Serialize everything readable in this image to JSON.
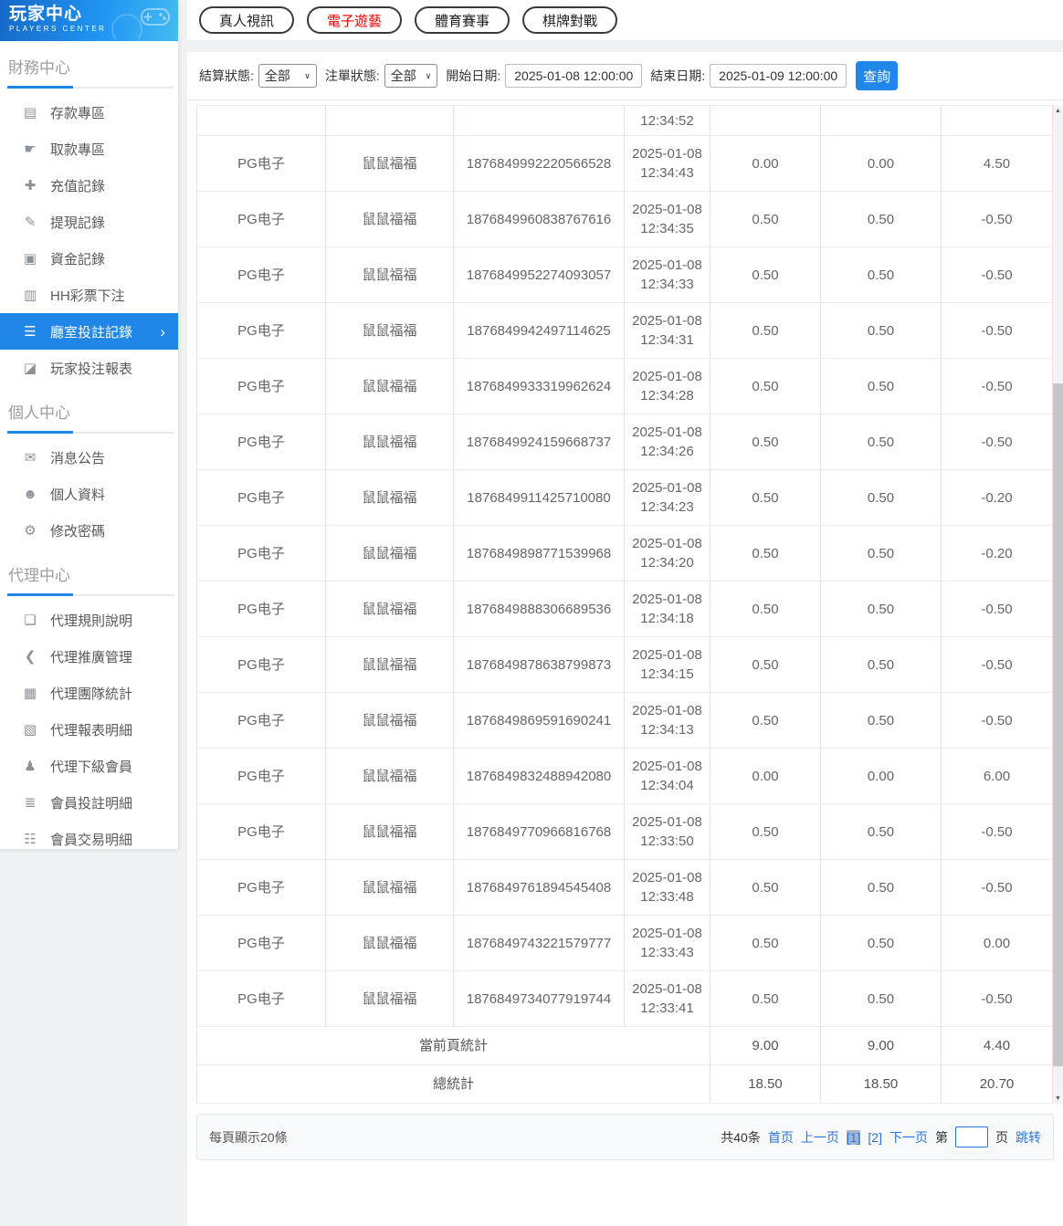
{
  "colors": {
    "accent": "#2086e8",
    "tab_active": "#f50000",
    "link": "#2b74e0",
    "table_col_border": "#f3dcdc"
  },
  "logo": {
    "title": "玩家中心",
    "subtitle": "PLAYERS CENTER"
  },
  "sidebar": {
    "sections": [
      {
        "title": "財務中心",
        "items": [
          {
            "id": "deposit",
            "label": "存款專區",
            "icon_glyph": "▤",
            "icon_name": "bank-card-icon",
            "active": false
          },
          {
            "id": "withdraw",
            "label": "取款專區",
            "icon_glyph": "☛",
            "icon_name": "hand-cash-icon",
            "active": false
          },
          {
            "id": "recharge-record",
            "label": "充值記錄",
            "icon_glyph": "✚",
            "icon_name": "moneybag-icon",
            "active": false
          },
          {
            "id": "withdraw-record",
            "label": "提現記錄",
            "icon_glyph": "✎",
            "icon_name": "cash-icon",
            "active": false
          },
          {
            "id": "funds-record",
            "label": "資金記錄",
            "icon_glyph": "▣",
            "icon_name": "moneybag-coin-icon",
            "active": false
          },
          {
            "id": "hh-lottery-bet",
            "label": "HH彩票下注",
            "icon_glyph": "▥",
            "icon_name": "ticket-icon",
            "active": false
          },
          {
            "id": "room-bet-record",
            "label": "廳室投註記錄",
            "icon_glyph": "☰",
            "icon_name": "list-icon",
            "active": true
          },
          {
            "id": "player-bet-report",
            "label": "玩家投注報表",
            "icon_glyph": "◪",
            "icon_name": "chart-icon",
            "active": false
          }
        ]
      },
      {
        "title": "個人中心",
        "items": [
          {
            "id": "announcements",
            "label": "消息公告",
            "icon_glyph": "✉",
            "icon_name": "bell-icon",
            "active": false
          },
          {
            "id": "profile",
            "label": "個人資料",
            "icon_glyph": "☻",
            "icon_name": "user-icon",
            "active": false
          },
          {
            "id": "change-password",
            "label": "修改密碼",
            "icon_glyph": "⚙",
            "icon_name": "gear-icon",
            "active": false
          }
        ]
      },
      {
        "title": "代理中心",
        "items": [
          {
            "id": "agent-rules",
            "label": "代理規則說明",
            "icon_glyph": "❏",
            "icon_name": "document-icon",
            "active": false
          },
          {
            "id": "agent-promotion",
            "label": "代理推廣管理",
            "icon_glyph": "❮",
            "icon_name": "share-icon",
            "active": false
          },
          {
            "id": "agent-team-stats",
            "label": "代理團隊統計",
            "icon_glyph": "▦",
            "icon_name": "bar-chart-icon",
            "active": false
          },
          {
            "id": "agent-report-detail",
            "label": "代理報表明細",
            "icon_glyph": "▧",
            "icon_name": "report-icon",
            "active": false
          },
          {
            "id": "agent-sub-members",
            "label": "代理下級會員",
            "icon_glyph": "♟",
            "icon_name": "users-icon",
            "active": false
          },
          {
            "id": "member-bet-detail",
            "label": "會員投註明細",
            "icon_glyph": "≣",
            "icon_name": "clipboard-icon",
            "active": false
          },
          {
            "id": "member-trans-detail",
            "label": "會員交易明細",
            "icon_glyph": "☷",
            "icon_name": "ledger-icon",
            "active": false
          }
        ]
      }
    ]
  },
  "tabs": [
    {
      "id": "live-video",
      "label": "真人視訊",
      "active": false
    },
    {
      "id": "e-games",
      "label": "電子遊藝",
      "active": true
    },
    {
      "id": "sports",
      "label": "體育賽事",
      "active": false
    },
    {
      "id": "board-games",
      "label": "棋牌對戰",
      "active": false
    }
  ],
  "filters": {
    "settle_label": "結算狀態:",
    "settle_value": "全部",
    "order_label": "注單狀態:",
    "order_value": "全部",
    "start_label": "開始日期:",
    "start_value": "2025-01-08 12:00:00",
    "end_label": "結束日期:",
    "end_value": "2025-01-09 12:00:00",
    "search_label": "查詢"
  },
  "table": {
    "partial_row_time": "12:34:52",
    "rows": [
      {
        "provider": "PG电子",
        "game": "鼠鼠福福",
        "order": "1876849992220566528",
        "date": "2025-01-08",
        "time": "12:34:43",
        "bet": "0.00",
        "valid": "0.00",
        "winloss": "4.50"
      },
      {
        "provider": "PG电子",
        "game": "鼠鼠福福",
        "order": "1876849960838767616",
        "date": "2025-01-08",
        "time": "12:34:35",
        "bet": "0.50",
        "valid": "0.50",
        "winloss": "-0.50"
      },
      {
        "provider": "PG电子",
        "game": "鼠鼠福福",
        "order": "1876849952274093057",
        "date": "2025-01-08",
        "time": "12:34:33",
        "bet": "0.50",
        "valid": "0.50",
        "winloss": "-0.50"
      },
      {
        "provider": "PG电子",
        "game": "鼠鼠福福",
        "order": "1876849942497114625",
        "date": "2025-01-08",
        "time": "12:34:31",
        "bet": "0.50",
        "valid": "0.50",
        "winloss": "-0.50"
      },
      {
        "provider": "PG电子",
        "game": "鼠鼠福福",
        "order": "1876849933319962624",
        "date": "2025-01-08",
        "time": "12:34:28",
        "bet": "0.50",
        "valid": "0.50",
        "winloss": "-0.50"
      },
      {
        "provider": "PG电子",
        "game": "鼠鼠福福",
        "order": "1876849924159668737",
        "date": "2025-01-08",
        "time": "12:34:26",
        "bet": "0.50",
        "valid": "0.50",
        "winloss": "-0.50"
      },
      {
        "provider": "PG电子",
        "game": "鼠鼠福福",
        "order": "1876849911425710080",
        "date": "2025-01-08",
        "time": "12:34:23",
        "bet": "0.50",
        "valid": "0.50",
        "winloss": "-0.20"
      },
      {
        "provider": "PG电子",
        "game": "鼠鼠福福",
        "order": "1876849898771539968",
        "date": "2025-01-08",
        "time": "12:34:20",
        "bet": "0.50",
        "valid": "0.50",
        "winloss": "-0.20"
      },
      {
        "provider": "PG电子",
        "game": "鼠鼠福福",
        "order": "1876849888306689536",
        "date": "2025-01-08",
        "time": "12:34:18",
        "bet": "0.50",
        "valid": "0.50",
        "winloss": "-0.50"
      },
      {
        "provider": "PG电子",
        "game": "鼠鼠福福",
        "order": "1876849878638799873",
        "date": "2025-01-08",
        "time": "12:34:15",
        "bet": "0.50",
        "valid": "0.50",
        "winloss": "-0.50"
      },
      {
        "provider": "PG电子",
        "game": "鼠鼠福福",
        "order": "1876849869591690241",
        "date": "2025-01-08",
        "time": "12:34:13",
        "bet": "0.50",
        "valid": "0.50",
        "winloss": "-0.50"
      },
      {
        "provider": "PG电子",
        "game": "鼠鼠福福",
        "order": "1876849832488942080",
        "date": "2025-01-08",
        "time": "12:34:04",
        "bet": "0.00",
        "valid": "0.00",
        "winloss": "6.00"
      },
      {
        "provider": "PG电子",
        "game": "鼠鼠福福",
        "order": "1876849770966816768",
        "date": "2025-01-08",
        "time": "12:33:50",
        "bet": "0.50",
        "valid": "0.50",
        "winloss": "-0.50"
      },
      {
        "provider": "PG电子",
        "game": "鼠鼠福福",
        "order": "1876849761894545408",
        "date": "2025-01-08",
        "time": "12:33:48",
        "bet": "0.50",
        "valid": "0.50",
        "winloss": "-0.50"
      },
      {
        "provider": "PG电子",
        "game": "鼠鼠福福",
        "order": "1876849743221579777",
        "date": "2025-01-08",
        "time": "12:33:43",
        "bet": "0.50",
        "valid": "0.50",
        "winloss": "0.00"
      },
      {
        "provider": "PG电子",
        "game": "鼠鼠福福",
        "order": "1876849734077919744",
        "date": "2025-01-08",
        "time": "12:33:41",
        "bet": "0.50",
        "valid": "0.50",
        "winloss": "-0.50"
      }
    ],
    "summary": [
      {
        "label": "當前頁統計",
        "bet": "9.00",
        "valid": "9.00",
        "winloss": "4.40"
      },
      {
        "label": "總統計",
        "bet": "18.50",
        "valid": "18.50",
        "winloss": "20.70"
      }
    ]
  },
  "pagination": {
    "per_page": "每頁顯示20條",
    "total": "共40条",
    "first": "首页",
    "prev": "上一页",
    "pages": [
      {
        "label": "[1]",
        "current": true
      },
      {
        "label": "[2]",
        "current": false
      }
    ],
    "next": "下一页",
    "jump_prefix": "第",
    "jump_suffix": "页",
    "jump": "跳转"
  }
}
